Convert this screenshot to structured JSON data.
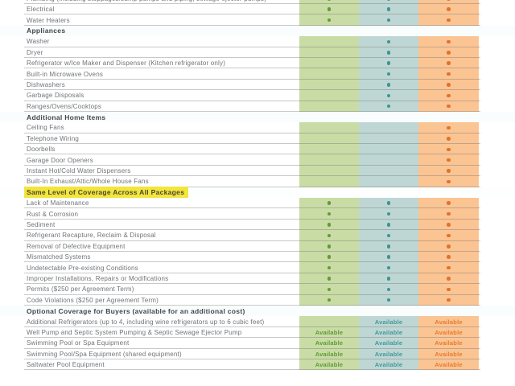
{
  "page": {
    "background": "#ffffff"
  },
  "palette": {
    "green_column_bg": "#c9dca5",
    "green_accent": "#649a37",
    "teal_column_bg": "#bed7d4",
    "teal_accent": "#3f9495",
    "orange_column_bg": "#fbc493",
    "orange_accent": "#e2732c",
    "highlight_bg": "#f2e53b",
    "label_text": "#6f7377",
    "section_text": "#40464a"
  },
  "table": {
    "columns": [
      "green-package",
      "teal-package",
      "orange-package"
    ],
    "rows": [
      {
        "type": "item",
        "label": "Plumbing (including stoppages/sump pumps and piping, sewage ejector pumps)",
        "cells": [
          "dot",
          "dot",
          "dot"
        ]
      },
      {
        "type": "item",
        "label": "Electrical",
        "cells": [
          "dot",
          "dot",
          "dot"
        ]
      },
      {
        "type": "item",
        "label": "Water Heaters",
        "cells": [
          "dot",
          "dot",
          "dot"
        ]
      },
      {
        "type": "section",
        "label": "Appliances"
      },
      {
        "type": "item",
        "label": "Washer",
        "cells": [
          "",
          "dot",
          "dot"
        ]
      },
      {
        "type": "item",
        "label": "Dryer",
        "cells": [
          "",
          "dot",
          "dot"
        ]
      },
      {
        "type": "item",
        "label": "Refrigerator w/Ice Maker and Dispenser (Kitchen refrigerator only)",
        "cells": [
          "",
          "dot",
          "dot"
        ]
      },
      {
        "type": "item",
        "label": "Built-in Microwave Ovens",
        "cells": [
          "",
          "dot",
          "dot"
        ]
      },
      {
        "type": "item",
        "label": "Dishwashers",
        "cells": [
          "",
          "dot",
          "dot"
        ]
      },
      {
        "type": "item",
        "label": "Garbage Disposals",
        "cells": [
          "",
          "dot",
          "dot"
        ]
      },
      {
        "type": "item",
        "label": "Ranges/Ovens/Cooktops",
        "cells": [
          "",
          "dot",
          "dot"
        ]
      },
      {
        "type": "section",
        "label": "Additional Home Items"
      },
      {
        "type": "item",
        "label": "Ceiling Fans",
        "cells": [
          "",
          "",
          "dot"
        ]
      },
      {
        "type": "item",
        "label": "Telephone Wiring",
        "cells": [
          "",
          "",
          "dot"
        ]
      },
      {
        "type": "item",
        "label": "Doorbells",
        "cells": [
          "",
          "",
          "dot"
        ]
      },
      {
        "type": "item",
        "label": "Garage Door Openers",
        "cells": [
          "",
          "",
          "dot"
        ]
      },
      {
        "type": "item",
        "label": "Instant Hot/Cold Water Dispensers",
        "cells": [
          "",
          "",
          "dot"
        ]
      },
      {
        "type": "item",
        "label": "Built-In Exhaust/Attic/Whole House Fans",
        "cells": [
          "",
          "",
          "dot"
        ]
      },
      {
        "type": "highlight",
        "label": "Same Level of Coverage Across All Packages"
      },
      {
        "type": "item",
        "label": "Lack of Maintenance",
        "cells": [
          "dot",
          "dot",
          "dot"
        ]
      },
      {
        "type": "item",
        "label": "Rust & Corrosion",
        "cells": [
          "dot",
          "dot",
          "dot"
        ]
      },
      {
        "type": "item",
        "label": "Sediment",
        "cells": [
          "dot",
          "dot",
          "dot"
        ]
      },
      {
        "type": "item",
        "label": "Refrigerant Recapture, Reclaim & Disposal",
        "cells": [
          "dot",
          "dot",
          "dot"
        ]
      },
      {
        "type": "item",
        "label": "Removal of Defective Equipment",
        "cells": [
          "dot",
          "dot",
          "dot"
        ]
      },
      {
        "type": "item",
        "label": "Mismatched Systems",
        "cells": [
          "dot",
          "dot",
          "dot"
        ]
      },
      {
        "type": "item",
        "label": "Undetectable Pre-existing Conditions",
        "cells": [
          "dot",
          "dot",
          "dot"
        ]
      },
      {
        "type": "item",
        "label": "Improper Installations, Repairs or Modifications",
        "cells": [
          "dot",
          "dot",
          "dot"
        ]
      },
      {
        "type": "item",
        "label": "Permits ($250 per Agreement Term)",
        "cells": [
          "dot",
          "dot",
          "dot"
        ]
      },
      {
        "type": "item",
        "label": "Code Violations ($250 per Agreement Term)",
        "cells": [
          "dot",
          "dot",
          "dot"
        ]
      },
      {
        "type": "section",
        "label": "Optional Coverage for Buyers (available for an additional cost)"
      },
      {
        "type": "item",
        "label": "Additional Refrigerators (up to 4, including wine refrigerators up to 6 cubic feet)",
        "cells": [
          "",
          "Available",
          "Available"
        ]
      },
      {
        "type": "item",
        "label": "Well Pump and Septic System Pumping & Septic Sewage Ejector Pump",
        "cells": [
          "Available",
          "Available",
          "Available"
        ]
      },
      {
        "type": "item",
        "label": "Swimming Pool or Spa Equipment",
        "cells": [
          "Available",
          "Available",
          "Available"
        ]
      },
      {
        "type": "item",
        "label": "Swimming Pool/Spa Equipment (shared equipment)",
        "cells": [
          "Available",
          "Available",
          "Available"
        ]
      },
      {
        "type": "item",
        "label": "Saltwater Pool Equipment",
        "cells": [
          "Available",
          "Available",
          "Available"
        ]
      }
    ]
  }
}
